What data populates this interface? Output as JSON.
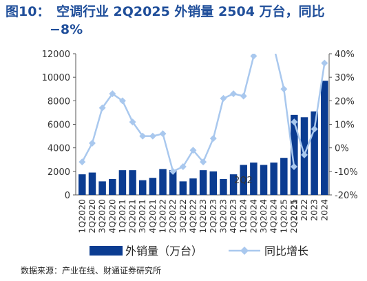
{
  "title_line1": "图10：　空调行业 2Q2025 外销量 2504 万台，同比",
  "title_line2": "−8%",
  "source": "数据来源：产业在线、财通证券研究所",
  "colors": {
    "bar": "#0b3c91",
    "line": "#a9c8ee",
    "title": "#1f4e9a"
  },
  "chart_data": {
    "type": "bar+line",
    "categories_quarterly": [
      "1Q2020",
      "2Q2020",
      "3Q2020",
      "4Q2020",
      "1Q2021",
      "2Q2021",
      "3Q2021",
      "4Q2021",
      "1Q2022",
      "2Q2022",
      "3Q2022",
      "4Q2022",
      "1Q2023",
      "2Q2023",
      "3Q2023",
      "4Q2023",
      "1Q2024",
      "2Q2024",
      "3Q2024",
      "4Q2024",
      "1Q2025",
      "2Q2025"
    ],
    "categories_annual": [
      "2021",
      "2022",
      "2023",
      "2024"
    ],
    "series": [
      {
        "name": "外销量（万台）",
        "axis": "left",
        "type": "bar",
        "quarterly": [
          1750,
          1900,
          1150,
          1350,
          2100,
          2100,
          1250,
          1450,
          2200,
          2100,
          1150,
          1400,
          2100,
          2000,
          1350,
          1750,
          2550,
          2750,
          2550,
          2750,
          3150,
          2504
        ],
        "annual": [
          6800,
          6600,
          7100,
          9700
        ]
      },
      {
        "name": "同比增长",
        "axis": "right",
        "type": "line",
        "unit": "%",
        "quarterly": [
          -6,
          2,
          17,
          23,
          20,
          11,
          5,
          5,
          6,
          -10,
          -8,
          -1,
          -6,
          4,
          21,
          23,
          22,
          39,
          55,
          43,
          25,
          -8
        ],
        "annual": [
          11,
          -3,
          8,
          36
        ]
      }
    ],
    "left_axis": {
      "min": 0,
      "max": 12000,
      "step": 2000,
      "ticks": [
        "0",
        "2000",
        "4000",
        "6000",
        "8000",
        "10000",
        "12000"
      ]
    },
    "right_axis": {
      "min": -20,
      "max": 40,
      "step": 10,
      "ticks": [
        "-20%",
        "-10%",
        "0%",
        "10%",
        "20%",
        "30%",
        "40%"
      ]
    },
    "annotation": "2Q2",
    "legend": [
      "外销量（万台）",
      "同比增长"
    ],
    "legend_position": "bottom"
  }
}
